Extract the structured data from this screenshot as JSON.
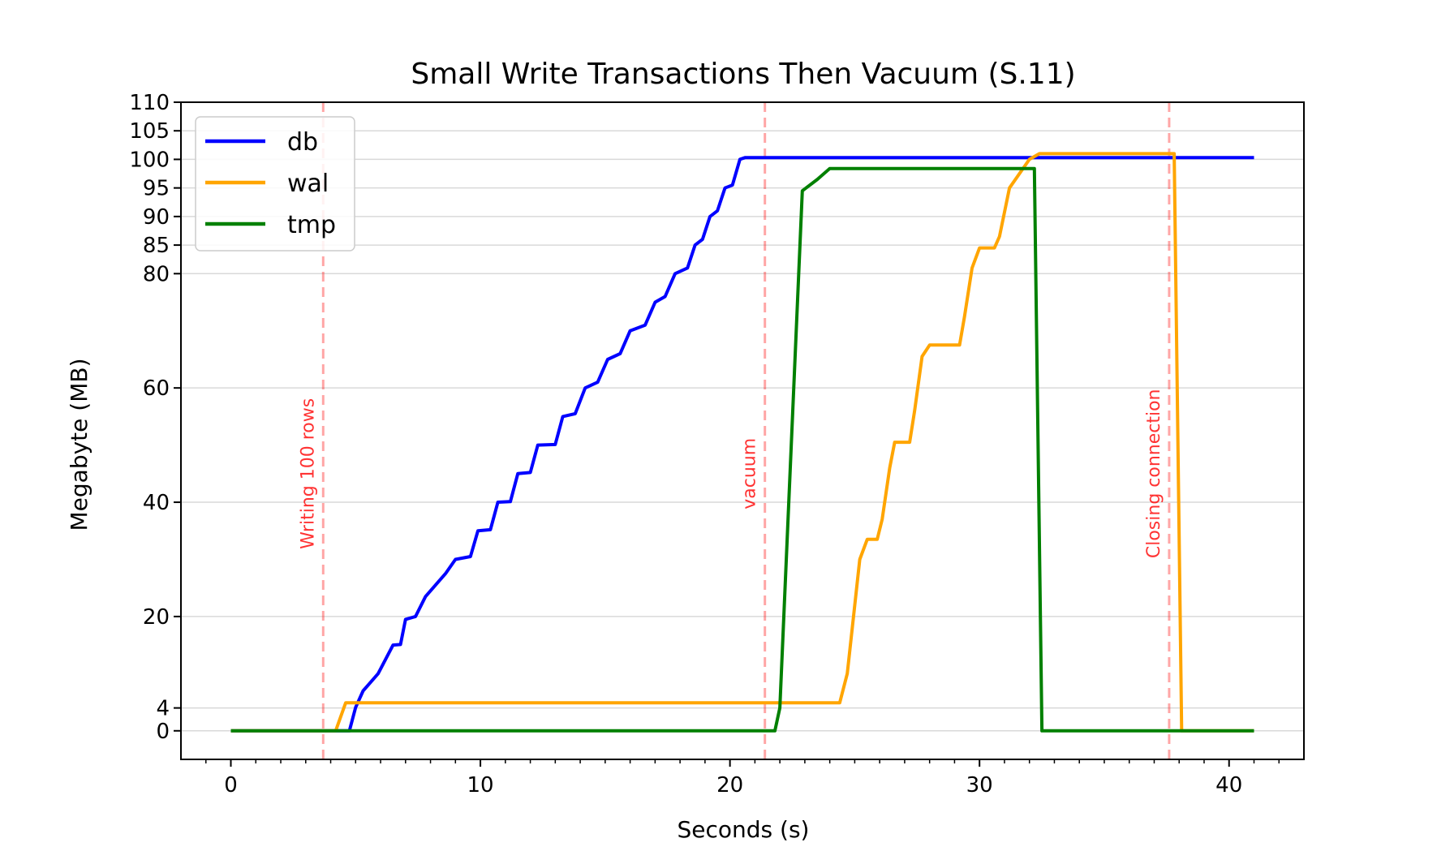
{
  "chart_data": {
    "type": "line",
    "title": "Small Write Transactions Then Vacuum (S.11)",
    "xlabel": "Seconds (s)",
    "ylabel": "Megabyte (MB)",
    "xlim": [
      -2.0,
      43.0
    ],
    "ylim": [
      -5,
      110
    ],
    "x_ticks": [
      0,
      10,
      20,
      30,
      40
    ],
    "x_tick_labels": [
      "0",
      "10",
      "20",
      "30",
      "40"
    ],
    "y_ticks": [
      0,
      4,
      20,
      40,
      60,
      80,
      85,
      90,
      95,
      100,
      105,
      110
    ],
    "y_tick_labels": [
      "0",
      "4",
      "20",
      "40",
      "60",
      "80",
      "85",
      "90",
      "95",
      "100",
      "105",
      "110"
    ],
    "grid": "horizontal",
    "legend_position": "upper-left",
    "series": [
      {
        "name": "db",
        "color": "#0000ff",
        "points": [
          [
            0,
            0
          ],
          [
            4.75,
            0
          ],
          [
            5.0,
            4.1
          ],
          [
            5.3,
            7.0
          ],
          [
            5.5,
            8.0
          ],
          [
            5.9,
            10.0
          ],
          [
            6.2,
            12.5
          ],
          [
            6.5,
            15.0
          ],
          [
            6.8,
            15.1
          ],
          [
            7.0,
            19.5
          ],
          [
            7.4,
            20.0
          ],
          [
            7.8,
            23.5
          ],
          [
            8.2,
            25.5
          ],
          [
            8.6,
            27.5
          ],
          [
            9.0,
            30.0
          ],
          [
            9.6,
            30.5
          ],
          [
            9.9,
            35.0
          ],
          [
            10.4,
            35.2
          ],
          [
            10.7,
            40.0
          ],
          [
            11.2,
            40.1
          ],
          [
            11.5,
            45.0
          ],
          [
            12.0,
            45.2
          ],
          [
            12.3,
            50.0
          ],
          [
            13.0,
            50.1
          ],
          [
            13.3,
            55.0
          ],
          [
            13.8,
            55.5
          ],
          [
            14.2,
            60.0
          ],
          [
            14.7,
            61.0
          ],
          [
            15.1,
            65.0
          ],
          [
            15.6,
            66.0
          ],
          [
            16.0,
            70.0
          ],
          [
            16.6,
            71.0
          ],
          [
            17.0,
            75.0
          ],
          [
            17.4,
            76.0
          ],
          [
            17.8,
            80.0
          ],
          [
            18.3,
            81.0
          ],
          [
            18.6,
            85.0
          ],
          [
            18.9,
            86.0
          ],
          [
            19.2,
            90.0
          ],
          [
            19.5,
            91.0
          ],
          [
            19.8,
            95.0
          ],
          [
            20.1,
            95.5
          ],
          [
            20.4,
            100.0
          ],
          [
            20.6,
            100.3
          ],
          [
            41.0,
            100.3
          ]
        ]
      },
      {
        "name": "wal",
        "color": "#ffa500",
        "points": [
          [
            0,
            0
          ],
          [
            4.2,
            0
          ],
          [
            4.6,
            4.9
          ],
          [
            24.4,
            4.9
          ],
          [
            24.7,
            10.0
          ],
          [
            25.2,
            30.0
          ],
          [
            25.5,
            33.5
          ],
          [
            25.9,
            33.5
          ],
          [
            26.1,
            37.0
          ],
          [
            26.4,
            46.0
          ],
          [
            26.6,
            50.5
          ],
          [
            27.2,
            50.5
          ],
          [
            27.4,
            56.0
          ],
          [
            27.7,
            65.5
          ],
          [
            28.0,
            67.5
          ],
          [
            29.2,
            67.5
          ],
          [
            29.4,
            72.5
          ],
          [
            29.7,
            81.0
          ],
          [
            30.0,
            84.5
          ],
          [
            30.6,
            84.5
          ],
          [
            30.8,
            86.5
          ],
          [
            31.2,
            95.0
          ],
          [
            32.0,
            100.0
          ],
          [
            32.4,
            101.0
          ],
          [
            37.8,
            101.0
          ],
          [
            38.1,
            0
          ],
          [
            41.0,
            0
          ]
        ]
      },
      {
        "name": "tmp",
        "color": "#008000",
        "points": [
          [
            0,
            0
          ],
          [
            21.8,
            0
          ],
          [
            22.0,
            4.0
          ],
          [
            22.9,
            94.5
          ],
          [
            23.5,
            96.5
          ],
          [
            24.0,
            98.4
          ],
          [
            32.2,
            98.4
          ],
          [
            32.5,
            0
          ],
          [
            41.0,
            0
          ]
        ]
      }
    ],
    "annotations": [
      {
        "x": 3.7,
        "label": "Writing 100 rows",
        "color": "#ff0000"
      },
      {
        "x": 21.4,
        "label": "vacuum",
        "color": "#ff0000"
      },
      {
        "x": 37.6,
        "label": "Closing connection",
        "color": "#ff0000"
      }
    ]
  }
}
